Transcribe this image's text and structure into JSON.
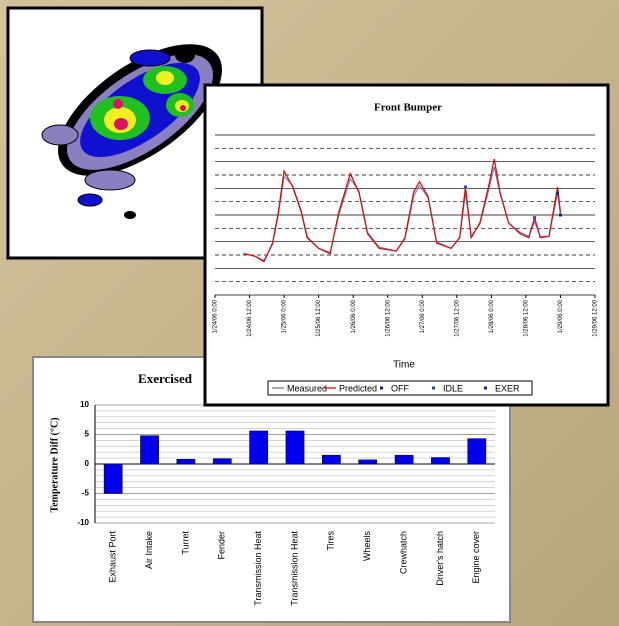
{
  "chart_data": [
    {
      "type": "line",
      "title": "Front Bumper",
      "x_label": "Time",
      "x": [
        10,
        14,
        17,
        20,
        22,
        24,
        27,
        30,
        32,
        36,
        40,
        43,
        47,
        50,
        53,
        57,
        63,
        66,
        69,
        71,
        74,
        77,
        82,
        85,
        87,
        89,
        92,
        95,
        97,
        99,
        102,
        106,
        109,
        111,
        113,
        116,
        119,
        120
      ],
      "xlim": [
        0,
        132
      ],
      "xticks": [
        {
          "value": 0,
          "label": "1/24/06 0:00"
        },
        {
          "value": 12,
          "label": "1/24/06 12:00"
        },
        {
          "value": 24,
          "label": "1/25/06 0:00"
        },
        {
          "value": 36,
          "label": "1/25/06 12:00"
        },
        {
          "value": 48,
          "label": "1/26/06 0:00"
        },
        {
          "value": 60,
          "label": "1/26/06 12:00"
        },
        {
          "value": 72,
          "label": "1/27/06 0:00"
        },
        {
          "value": 84,
          "label": "1/27/06 12:00"
        },
        {
          "value": 96,
          "label": "1/28/06 0:00"
        },
        {
          "value": 108,
          "label": "1/28/06 12:00"
        },
        {
          "value": 120,
          "label": "1/29/06 0:00"
        },
        {
          "value": 132,
          "label": "1/29/06 12:00"
        }
      ],
      "ylim": [
        0,
        12
      ],
      "series": [
        {
          "name": "Measured",
          "color": "#6f72b8",
          "marker": "line",
          "values": [
            3.1,
            2.9,
            2.6,
            3.8,
            6,
            8.9,
            8.2,
            6.3,
            4.4,
            3.5,
            3.2,
            6,
            8.7,
            7.8,
            4.7,
            3.6,
            3.3,
            4.2,
            7.4,
            8.2,
            7.3,
            4,
            3.5,
            4.3,
            7.6,
            4.4,
            5.3,
            7.8,
            9.6,
            7.6,
            5.4,
            4.7,
            4.4,
            5.5,
            4.4,
            4.4,
            7.6,
            6
          ]
        },
        {
          "name": "Predicted",
          "color": "#d01010",
          "marker": "line",
          "values": [
            3.1,
            2.9,
            2.5,
            3.9,
            6.2,
            9.3,
            8.1,
            6.2,
            4.3,
            3.5,
            3.1,
            6.2,
            9.1,
            7.7,
            4.6,
            3.5,
            3.3,
            4.3,
            7.7,
            8.5,
            7.4,
            3.9,
            3.5,
            4.3,
            8.1,
            4.3,
            5.4,
            8.1,
            10.2,
            7.7,
            5.4,
            4.6,
            4.3,
            5.8,
            4.3,
            4.4,
            8.1,
            6.2
          ]
        },
        {
          "name": "OFF",
          "color": "#1a1a8c",
          "marker": "point",
          "values": [
            null,
            null,
            null,
            null,
            null,
            null,
            null,
            null,
            null,
            null,
            null,
            null,
            null,
            null,
            null,
            null,
            null,
            null,
            null,
            null,
            null,
            null,
            null,
            null,
            null,
            null,
            null,
            null,
            null,
            null,
            null,
            null,
            null,
            null,
            null,
            null,
            null,
            null
          ]
        },
        {
          "name": "IDLE",
          "color": "#3040c0",
          "marker": "point",
          "values": [
            null,
            null,
            null,
            null,
            null,
            null,
            null,
            null,
            null,
            null,
            null,
            null,
            null,
            null,
            null,
            null,
            null,
            null,
            null,
            null,
            null,
            null,
            null,
            null,
            8.1,
            null,
            null,
            null,
            null,
            null,
            null,
            null,
            null,
            5.8,
            null,
            null,
            null,
            null
          ]
        },
        {
          "name": "EXER",
          "color": "#202080",
          "marker": "point",
          "values": [
            null,
            null,
            null,
            null,
            null,
            null,
            null,
            null,
            null,
            null,
            null,
            null,
            null,
            null,
            null,
            null,
            null,
            null,
            null,
            null,
            null,
            null,
            null,
            null,
            null,
            null,
            null,
            null,
            null,
            null,
            null,
            null,
            null,
            null,
            null,
            null,
            7.6,
            6
          ]
        }
      ]
    },
    {
      "type": "bar",
      "title": "Exercised",
      "y_label": "Temperature Diff (°C)",
      "categories": [
        "Exhaust Port",
        "Air Intake",
        "Turret",
        "Fender",
        "Transmission Heat",
        "Transmission Heat",
        "Tires",
        "Wheels",
        "Crewhatch",
        "Driver's hatch",
        "Engine cover"
      ],
      "values": [
        -5,
        4.8,
        0.8,
        0.9,
        5.6,
        5.6,
        1.5,
        0.7,
        1.5,
        1.1,
        4.3
      ],
      "color": "#0000ee",
      "ylim": [
        -10,
        10
      ],
      "yticks": [
        -10,
        -5,
        0,
        5,
        10
      ],
      "grid": true
    }
  ]
}
